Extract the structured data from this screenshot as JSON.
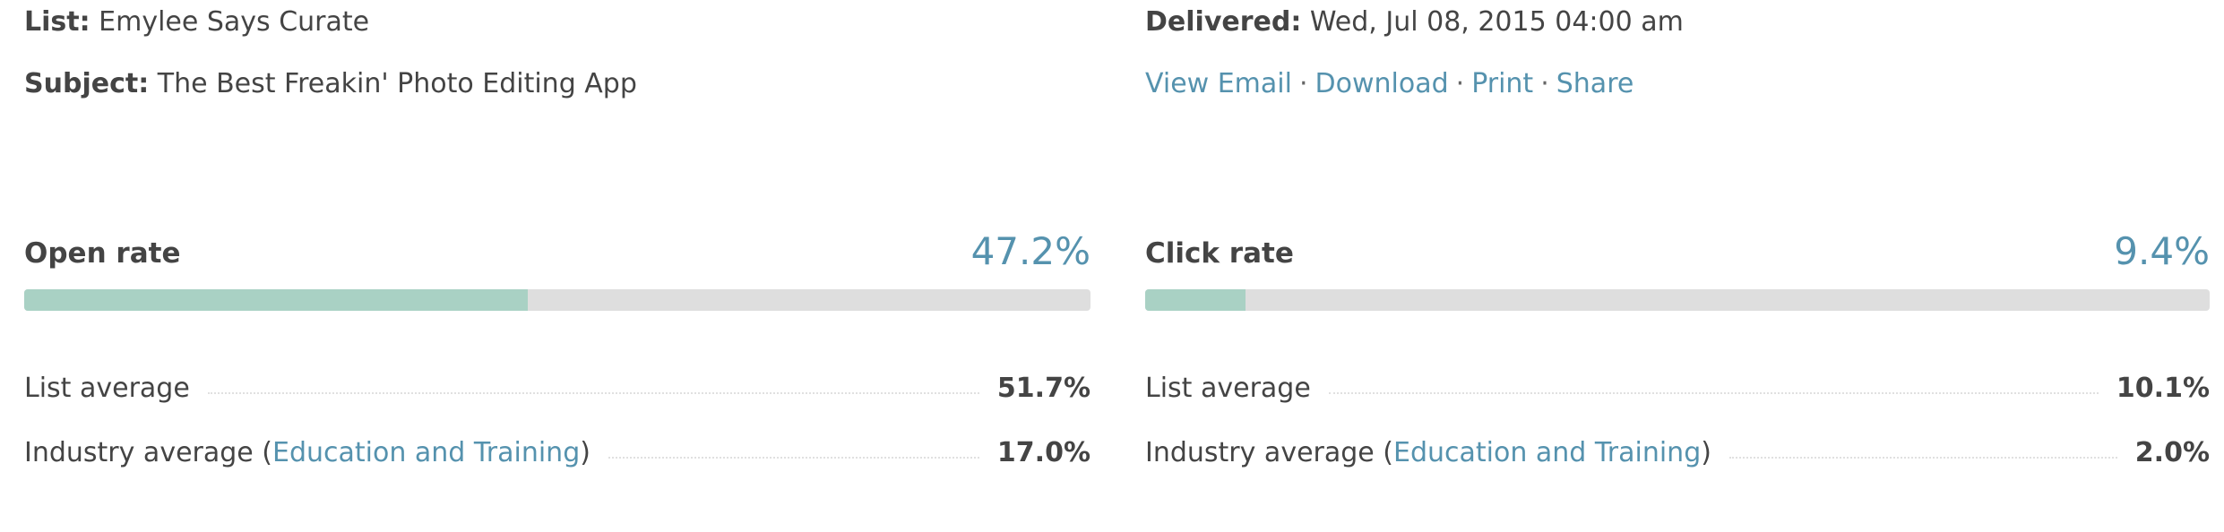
{
  "header": {
    "list_label": "List:",
    "list_value": "Emylee Says Curate",
    "subject_label": "Subject:",
    "subject_value": "The Best Freakin' Photo Editing App",
    "delivered_label": "Delivered:",
    "delivered_value": "Wed, Jul 08, 2015 04:00 am",
    "links": [
      "View Email",
      "Download",
      "Print",
      "Share"
    ],
    "separator": "·"
  },
  "metrics": [
    {
      "label": "Open rate",
      "rate": 47.2,
      "rate_label": "47.2%",
      "xlim": [
        0,
        100
      ],
      "list_average_label": "List average",
      "list_average": "51.7%",
      "industry_label": "Industry average (",
      "industry_name": "Education and Training",
      "industry_close": ")",
      "industry_average": "17.0%"
    },
    {
      "label": "Click rate",
      "rate": 9.4,
      "rate_label": "9.4%",
      "xlim": [
        0,
        100
      ],
      "list_average_label": "List average",
      "list_average": "10.1%",
      "industry_label": "Industry average (",
      "industry_name": "Education and Training",
      "industry_close": ")",
      "industry_average": "2.0%"
    }
  ]
}
